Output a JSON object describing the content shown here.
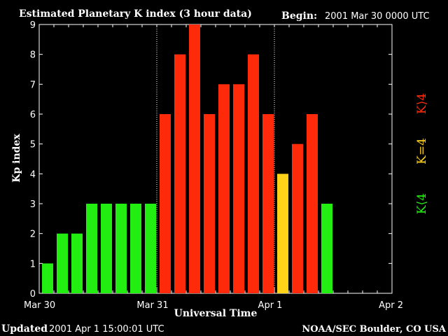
{
  "header": {
    "title": "Estimated Planetary K index (3 hour data)",
    "begin_label": "Begin:",
    "begin_value": "2001 Mar 30 0000 UTC"
  },
  "footer": {
    "updated_label": "Updated",
    "updated_value": "2001 Apr  1 15:00:01 UTC",
    "source": "NOAA/SEC Boulder, CO USA"
  },
  "colors": {
    "background": "#000000",
    "axis": "#ffffff",
    "low": "#22ee11",
    "equal": "#ffd21a",
    "high": "#ff2a0a"
  },
  "legend": {
    "high": "K⟩4",
    "equal": "K=4",
    "low": "K⟨4"
  },
  "chart_data": {
    "type": "bar",
    "title": "Estimated Planetary K index (3 hour data)",
    "xlabel": "Universal Time",
    "ylabel": "Kp index",
    "ylim": [
      0,
      9
    ],
    "yticks": [
      "0",
      "1",
      "2",
      "3",
      "4",
      "5",
      "6",
      "7",
      "8",
      "9"
    ],
    "xticks": [
      "Mar 30",
      "Mar 31",
      "Apr 1",
      "Apr 2"
    ],
    "x_days": 3,
    "interval_hours": 3,
    "grid": false,
    "day_separators": "dotted",
    "legend_position": "right",
    "values": [
      1,
      2,
      2,
      3,
      3,
      3,
      3,
      3,
      6,
      8,
      9,
      6,
      7,
      7,
      8,
      6,
      4,
      5,
      6,
      3
    ]
  }
}
